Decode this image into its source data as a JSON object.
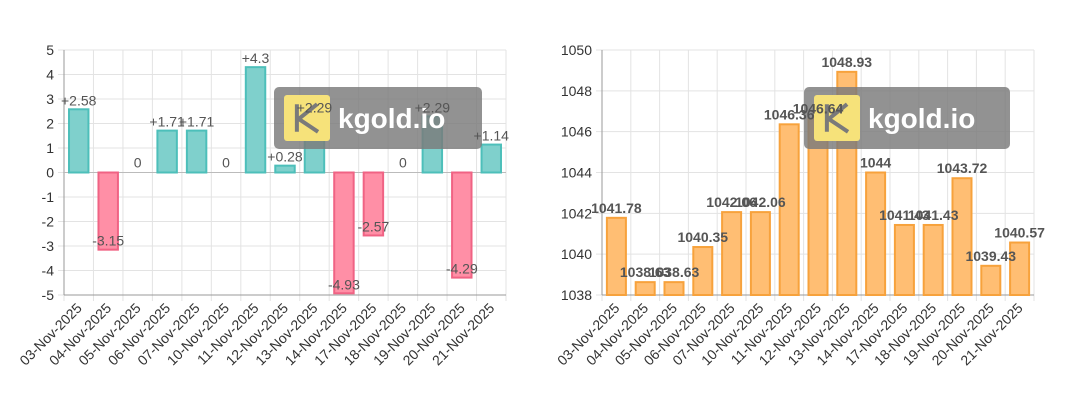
{
  "chart_data": [
    {
      "type": "bar",
      "categories": [
        "03-Nov-2025",
        "04-Nov-2025",
        "05-Nov-2025",
        "06-Nov-2025",
        "07-Nov-2025",
        "10-Nov-2025",
        "11-Nov-2025",
        "12-Nov-2025",
        "13-Nov-2025",
        "14-Nov-2025",
        "17-Nov-2025",
        "18-Nov-2025",
        "19-Nov-2025",
        "20-Nov-2025",
        "21-Nov-2025"
      ],
      "values": [
        2.58,
        -3.15,
        0,
        1.71,
        1.71,
        0,
        4.3,
        0.28,
        2.29,
        -4.93,
        -2.57,
        0,
        2.29,
        -4.29,
        1.14
      ],
      "labels": [
        "+2.58",
        "-3.15",
        "0",
        "+1.71",
        "+1.71",
        "0",
        "+4.3",
        "+0.28",
        "+2.29",
        "-4.93",
        "-2.57",
        "0",
        "+2.29",
        "-4.29",
        "+1.14"
      ],
      "ylim": [
        -5,
        5
      ],
      "yticks": [
        "5",
        "4",
        "3",
        "2",
        "1",
        "0",
        "-1",
        "-2",
        "-3",
        "-4",
        "-5"
      ],
      "grid": true,
      "colors": {
        "positive_fill": "#7fd0cc",
        "positive_stroke": "#4dbfba",
        "negative_fill": "#ff8fa6",
        "negative_stroke": "#f06384"
      }
    },
    {
      "type": "bar",
      "categories": [
        "03-Nov-2025",
        "04-Nov-2025",
        "05-Nov-2025",
        "06-Nov-2025",
        "07-Nov-2025",
        "10-Nov-2025",
        "11-Nov-2025",
        "12-Nov-2025",
        "13-Nov-2025",
        "14-Nov-2025",
        "17-Nov-2025",
        "18-Nov-2025",
        "19-Nov-2025",
        "20-Nov-2025",
        "21-Nov-2025"
      ],
      "values": [
        1041.78,
        1038.63,
        1038.63,
        1040.35,
        1042.06,
        1042.06,
        1046.36,
        1046.64,
        1048.93,
        1044,
        1041.43,
        1041.43,
        1043.72,
        1039.43,
        1040.57
      ],
      "labels": [
        "1041.78",
        "1038.63",
        "1038.63",
        "1040.35",
        "1042.06",
        "1042.06",
        "1046.36",
        "1046.64",
        "1048.93",
        "1044",
        "1041.43",
        "1041.43",
        "1043.72",
        "1039.43",
        "1040.57"
      ],
      "ylim": [
        1038,
        1050
      ],
      "yticks": [
        "1050",
        "1048",
        "1046",
        "1044",
        "1042",
        "1040",
        "1038"
      ],
      "grid": true,
      "colors": {
        "fill": "#ffbe73",
        "stroke": "#f7a23c"
      }
    }
  ],
  "watermark": {
    "text": "kgold.io",
    "icon": "k-logo-icon",
    "color": "#7a7a7a"
  }
}
